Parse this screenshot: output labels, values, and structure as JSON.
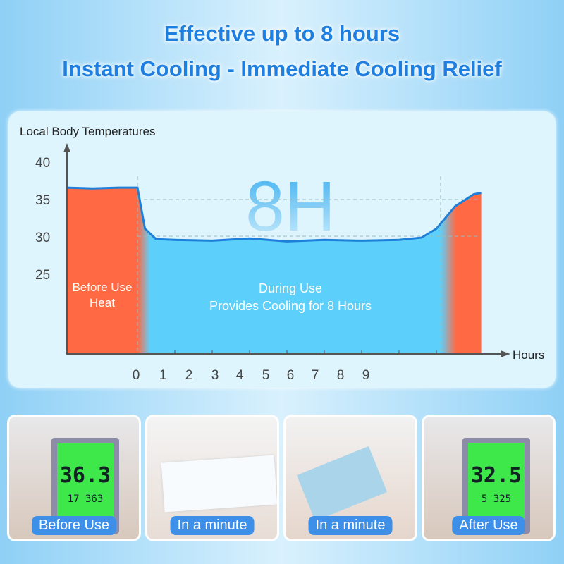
{
  "header": {
    "line1": "Effective up to 8 hours",
    "line2": "Instant Cooling - Immediate Cooling Relief"
  },
  "chart_data": {
    "type": "area",
    "ylabel": "Local Body Temperatures",
    "xlabel": "Hours",
    "yticks": [
      "40",
      "35",
      "30",
      "25"
    ],
    "xticks": [
      "0",
      "1",
      "2",
      "3",
      "4",
      "5",
      "6",
      "7",
      "8",
      "9"
    ],
    "ylim": [
      14,
      45
    ],
    "grid": "dashed lines at 30 and 35",
    "big_label": "8H",
    "regions": [
      {
        "label1": "Before Use",
        "label2": "Heat",
        "color": "#ff6a45"
      },
      {
        "label1": "During Use",
        "label2": "Provides Cooling for 8 Hours",
        "color": "#5cd0fb"
      },
      {
        "color": "#ff6a45"
      }
    ],
    "curve": {
      "x": [
        -1.9,
        -1.2,
        -0.5,
        0,
        0.2,
        0.5,
        1,
        2,
        3,
        4,
        5,
        6,
        7,
        7.6,
        8,
        8.5,
        9,
        9.2
      ],
      "y": [
        36.5,
        36.4,
        36.5,
        36.5,
        31,
        29.6,
        29.5,
        29.4,
        29.7,
        29.3,
        29.5,
        29.4,
        29.5,
        29.8,
        31,
        34,
        35.6,
        35.8
      ]
    },
    "line_color": "#1d7fd8"
  },
  "photos": [
    {
      "caption": "Before Use",
      "reading": "36.3",
      "sub": "17  363"
    },
    {
      "caption": "In a minute"
    },
    {
      "caption": "In a minute"
    },
    {
      "caption": "After Use",
      "reading": "32.5",
      "sub": "5  325"
    }
  ]
}
